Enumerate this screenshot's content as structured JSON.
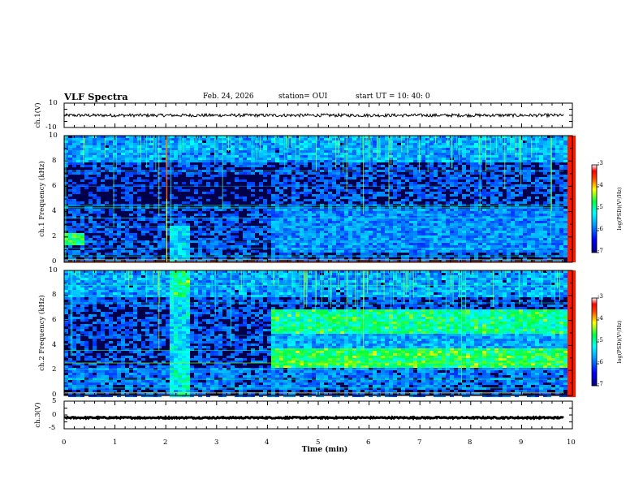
{
  "header": {
    "title": "VLF Spectra",
    "date": "Feb. 24, 2026",
    "station": "station= OUI",
    "start": "start  UT  =   10: 40: 0"
  },
  "colors": {
    "background": "#ffffff",
    "axis": "#000000",
    "trace": "#000000"
  },
  "chart_data": [
    {
      "type": "line",
      "name": "ch1-waveform",
      "ylabel": "ch.1(V)",
      "ylim": [
        -10,
        10
      ],
      "yticks": [
        "10",
        "-10"
      ],
      "x_range": [
        0,
        9.83
      ],
      "baseline": 0,
      "trace_label": "ch.1 amplitude trace"
    },
    {
      "type": "heatmap",
      "name": "ch1-spectrogram",
      "ylabel": "ch.1 Frequency (kHz)",
      "ylim": [
        0,
        10
      ],
      "yticks": [
        "0",
        "2",
        "4",
        "6",
        "8",
        "10"
      ],
      "colorbar": {
        "label": "log(PSD)(V²/Hz)",
        "range": [
          -7,
          -3
        ],
        "ticks": [
          "-3",
          "-4",
          "-5",
          "-6",
          "-7"
        ]
      },
      "features": "broadband noise, strong spheric lines, intense low-frequency band near 2 kHz before 0.3 min, enhanced noise near 2.2 min"
    },
    {
      "type": "heatmap",
      "name": "ch2-spectrogram",
      "ylabel": "ch.2 Frequency (kHz)",
      "ylim": [
        0,
        10
      ],
      "yticks": [
        "0",
        "2",
        "4",
        "6",
        "8",
        "10"
      ],
      "colorbar": {
        "label": "log(PSD)(V²/Hz)",
        "range": [
          -7,
          -3
        ],
        "ticks": [
          "-3",
          "-4",
          "-5",
          "-6",
          "-7"
        ]
      },
      "features": "enhanced bands 2.5-3.8 kHz and 5-7 kHz after 4 min"
    },
    {
      "type": "line",
      "name": "ch3-waveform",
      "ylabel": "ch.3(V)",
      "ylim": [
        -5,
        5
      ],
      "yticks": [
        "5",
        "0",
        "-5"
      ],
      "x_range": [
        0,
        9.83
      ],
      "baseline": -1,
      "trace_label": "ch.3 amplitude trace"
    }
  ],
  "xaxis": {
    "label": "Time  (min)",
    "range": [
      0,
      10
    ],
    "ticks": [
      "0",
      "1",
      "2",
      "3",
      "4",
      "5",
      "6",
      "7",
      "8",
      "9",
      "10"
    ]
  }
}
